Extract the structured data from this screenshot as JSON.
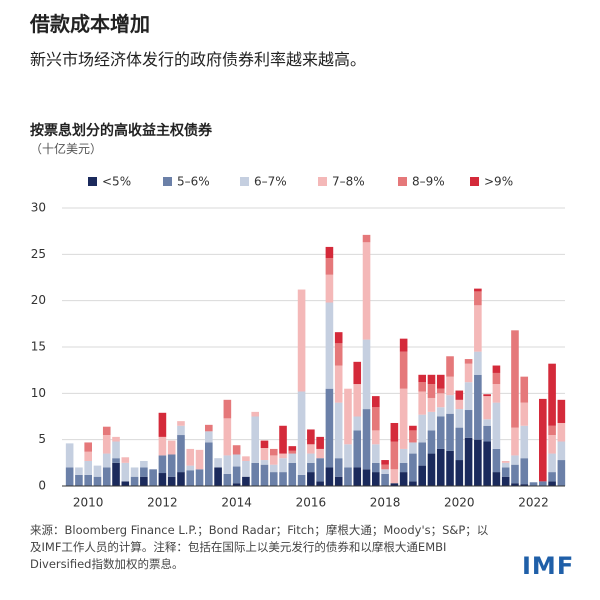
{
  "header": {
    "title": "借款成本增加",
    "subtitle": "新兴市场经济体发行的政府债券利率越来越高。"
  },
  "chart_data": {
    "type": "stacked_bar",
    "title": "按票息划分的高收益主权债券",
    "unit": "（十亿美元）",
    "categories": [
      null,
      null,
      "2010",
      null,
      null,
      null,
      null,
      null,
      null,
      null,
      "2012",
      null,
      null,
      null,
      null,
      null,
      null,
      null,
      "2014",
      null,
      null,
      null,
      null,
      null,
      null,
      null,
      "2016",
      null,
      null,
      null,
      null,
      null,
      null,
      null,
      "2018",
      null,
      null,
      null,
      null,
      null,
      null,
      null,
      "2020",
      null,
      null,
      null,
      null,
      null,
      null,
      null,
      "2022",
      null,
      null,
      null
    ],
    "series": [
      {
        "name": "<5%",
        "color": "#1b2a5c",
        "values": [
          0,
          0,
          0,
          0,
          0,
          2.5,
          0.5,
          0,
          1,
          0,
          1.4,
          1,
          1.5,
          0,
          0,
          0,
          2,
          0,
          0.3,
          1,
          0,
          0,
          0,
          0,
          0,
          0,
          1.5,
          0.5,
          2,
          1,
          0,
          2,
          1.8,
          1.5,
          0,
          0.3,
          1.5,
          0.5,
          2.2,
          3.5,
          4,
          3.8,
          2.8,
          5.2,
          5,
          4.8,
          1.5,
          1,
          0.3,
          0.2,
          0,
          0,
          0.5,
          0
        ]
      },
      {
        "name": "5–6%",
        "color": "#6b80a8",
        "values": [
          2,
          1.2,
          1.2,
          1,
          2,
          0.5,
          0,
          1,
          1,
          1.8,
          1.9,
          2.4,
          4,
          1.7,
          1.8,
          4.7,
          0,
          1.3,
          1.8,
          0,
          2.5,
          2.3,
          1.5,
          1.5,
          2.5,
          1.2,
          1,
          2.5,
          8.5,
          2,
          2,
          4,
          6.5,
          1,
          1.3,
          0,
          1,
          3,
          2.5,
          2.5,
          3.5,
          4,
          3.5,
          3,
          7,
          1.7,
          2.5,
          1,
          2,
          2.8,
          0.4,
          0.5,
          1,
          2.8
        ]
      },
      {
        "name": "6–7%",
        "color": "#c5cfe0",
        "values": [
          2.6,
          0.8,
          1.5,
          1.2,
          1.5,
          1.8,
          2,
          1,
          0.7,
          0,
          0,
          0,
          1,
          0.5,
          0,
          1.2,
          1,
          2,
          1.3,
          1.7,
          5,
          0.5,
          0.8,
          1.5,
          1,
          9,
          1,
          0,
          9.3,
          6,
          2.5,
          1.5,
          7.5,
          2,
          0.5,
          0,
          1.5,
          1.2,
          3,
          2,
          1,
          2,
          2,
          3,
          2.5,
          0.7,
          5,
          0.5,
          1,
          3.5,
          0,
          0,
          2,
          2
        ]
      },
      {
        "name": "7–8%",
        "color": "#f4b8b8",
        "values": [
          0,
          0,
          1,
          0,
          2,
          0.5,
          0.6,
          0,
          0,
          0,
          2,
          1.5,
          0.5,
          1.8,
          2.1,
          0,
          0,
          4,
          0,
          0.5,
          0.5,
          1.3,
          1,
          0.5,
          0,
          11,
          1,
          1,
          3,
          4,
          6,
          3.5,
          10.5,
          1.5,
          0,
          1.5,
          6.5,
          0,
          2.5,
          1.5,
          1.5,
          2,
          1,
          2,
          5,
          2.5,
          2,
          0.2,
          3,
          2.5,
          0,
          0,
          2,
          2
        ]
      },
      {
        "name": "8–9%",
        "color": "#e5787a",
        "values": [
          0,
          0,
          1,
          0,
          0.9,
          0,
          0,
          0,
          0,
          0,
          0,
          0,
          0,
          0,
          0,
          0.7,
          0,
          2,
          1,
          0,
          0,
          0,
          0.7,
          0,
          0.3,
          0,
          0,
          0,
          1.8,
          2.4,
          0,
          0,
          0.8,
          2.5,
          0.5,
          3,
          4,
          1.3,
          1,
          1.5,
          0.5,
          2.2,
          0,
          0.5,
          1.5,
          0,
          1.2,
          0,
          10.5,
          2.8,
          0,
          0,
          1,
          0
        ]
      },
      {
        "name": ">9%",
        "color": "#d42a3a",
        "values": [
          0,
          0,
          0,
          0,
          0,
          0,
          0,
          0,
          0,
          0,
          2.6,
          0,
          0,
          0,
          0,
          0,
          0,
          0,
          0,
          0,
          0,
          0.8,
          0,
          3,
          0.5,
          0,
          1.6,
          1.3,
          1.2,
          1.2,
          0,
          2.4,
          0,
          1.2,
          0.5,
          2,
          1.4,
          0.5,
          0.8,
          1,
          1.5,
          0,
          1,
          0,
          0.3,
          0.2,
          0.8,
          0,
          0,
          0,
          0,
          8.9,
          6.7,
          2.5
        ]
      }
    ],
    "ylim": [
      0,
      30
    ],
    "yticks": [
      0,
      5,
      10,
      15,
      20,
      25,
      30
    ],
    "grid": true
  },
  "footer": {
    "source": "来源：Bloomberg Finance L.P.；Bond Radar；Fitch；摩根大通；Moody's；S&P；以及IMF工作人员的计算。注释：包括在国际上以美元发行的债券和以摩根大通EMBI Diversified指数加权的票息。",
    "logo": "IMF"
  }
}
